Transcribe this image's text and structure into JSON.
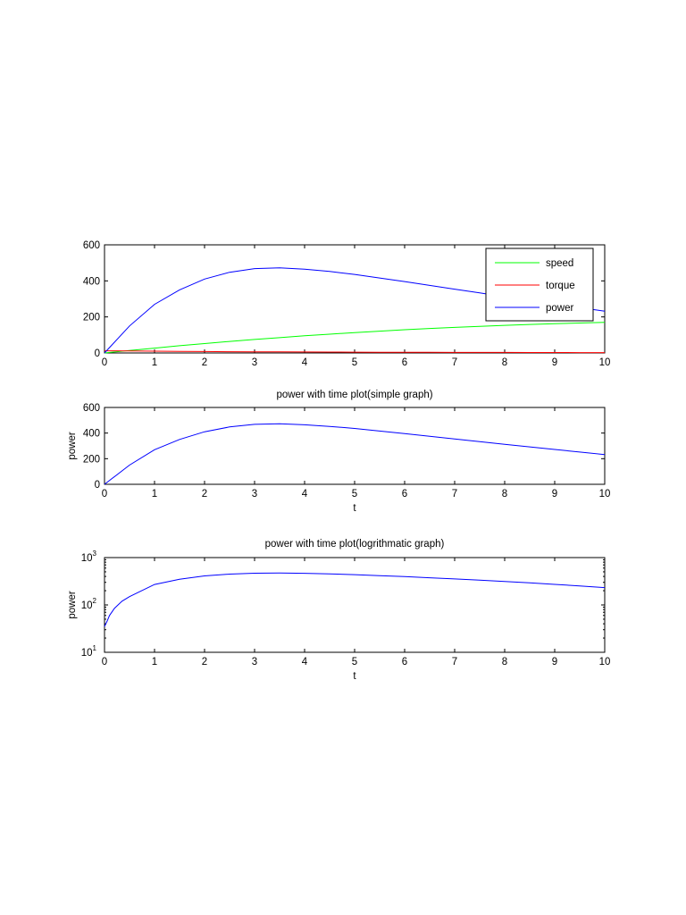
{
  "chart_data": [
    {
      "type": "line",
      "title": "",
      "xlabel": "",
      "ylabel": "",
      "xlim": [
        0,
        10
      ],
      "ylim": [
        0,
        600
      ],
      "yscale": "linear",
      "xticks": [
        "0",
        "1",
        "2",
        "3",
        "4",
        "5",
        "6",
        "7",
        "8",
        "9",
        "10"
      ],
      "yticks": [
        "0",
        "200",
        "400",
        "600"
      ],
      "ytick_values": [
        0,
        200,
        400,
        600
      ],
      "legend_position": "top-right",
      "x": [
        0,
        0.5,
        1,
        1.5,
        2,
        2.5,
        3,
        3.5,
        4,
        4.5,
        5,
        5.5,
        6,
        6.5,
        7,
        7.5,
        8,
        8.5,
        9,
        9.5,
        10
      ],
      "series": [
        {
          "name": "speed",
          "color": "#00ff00",
          "values": [
            0,
            14,
            27,
            40,
            52,
            64,
            75,
            85,
            95,
            104,
            113,
            121,
            129,
            136,
            142,
            148,
            153,
            158,
            162,
            166,
            170
          ]
        },
        {
          "name": "torque",
          "color": "#ff0000",
          "values": [
            12,
            11,
            10,
            9,
            8,
            7,
            6.5,
            6,
            5.5,
            5,
            4.5,
            4,
            3.8,
            3.5,
            3.2,
            3,
            2.8,
            2.6,
            2.4,
            2.2,
            2
          ]
        },
        {
          "name": "power",
          "color": "#0000ff",
          "values": [
            0,
            150,
            270,
            350,
            410,
            448,
            468,
            472,
            465,
            452,
            436,
            416,
            396,
            375,
            354,
            333,
            312,
            292,
            272,
            252,
            232
          ]
        }
      ]
    },
    {
      "type": "line",
      "title": "power with time plot(simple graph)",
      "xlabel": "t",
      "ylabel": "power",
      "xlim": [
        0,
        10
      ],
      "ylim": [
        0,
        600
      ],
      "yscale": "linear",
      "xticks": [
        "0",
        "1",
        "2",
        "3",
        "4",
        "5",
        "6",
        "7",
        "8",
        "9",
        "10"
      ],
      "yticks": [
        "0",
        "200",
        "400",
        "600"
      ],
      "ytick_values": [
        0,
        200,
        400,
        600
      ],
      "x": [
        0,
        0.5,
        1,
        1.5,
        2,
        2.5,
        3,
        3.5,
        4,
        4.5,
        5,
        5.5,
        6,
        6.5,
        7,
        7.5,
        8,
        8.5,
        9,
        9.5,
        10
      ],
      "series": [
        {
          "color": "#0000ff",
          "values": [
            0,
            150,
            270,
            350,
            410,
            448,
            468,
            472,
            465,
            452,
            436,
            416,
            396,
            375,
            354,
            333,
            312,
            292,
            272,
            252,
            232
          ]
        }
      ]
    },
    {
      "type": "line",
      "title": "power with time plot(logrithmatic graph)",
      "xlabel": "t",
      "ylabel": "power",
      "xlim": [
        0,
        10
      ],
      "ylim": [
        10,
        1000
      ],
      "yscale": "log",
      "xticks": [
        "0",
        "1",
        "2",
        "3",
        "4",
        "5",
        "6",
        "7",
        "8",
        "9",
        "10"
      ],
      "yticks": [
        "10",
        "10",
        "10"
      ],
      "ytick_exponents": [
        "1",
        "2",
        "3"
      ],
      "ytick_values": [
        10,
        100,
        1000
      ],
      "x": [
        0,
        0.05,
        0.1,
        0.2,
        0.35,
        0.5,
        1,
        1.5,
        2,
        2.5,
        3,
        3.5,
        4,
        4.5,
        5,
        5.5,
        6,
        6.5,
        7,
        7.5,
        8,
        8.5,
        9,
        9.5,
        10
      ],
      "series": [
        {
          "color": "#0000ff",
          "values": [
            35,
            45,
            60,
            85,
            120,
            150,
            270,
            350,
            410,
            448,
            468,
            472,
            465,
            452,
            436,
            416,
            396,
            375,
            354,
            333,
            312,
            292,
            272,
            252,
            232
          ]
        }
      ]
    }
  ]
}
